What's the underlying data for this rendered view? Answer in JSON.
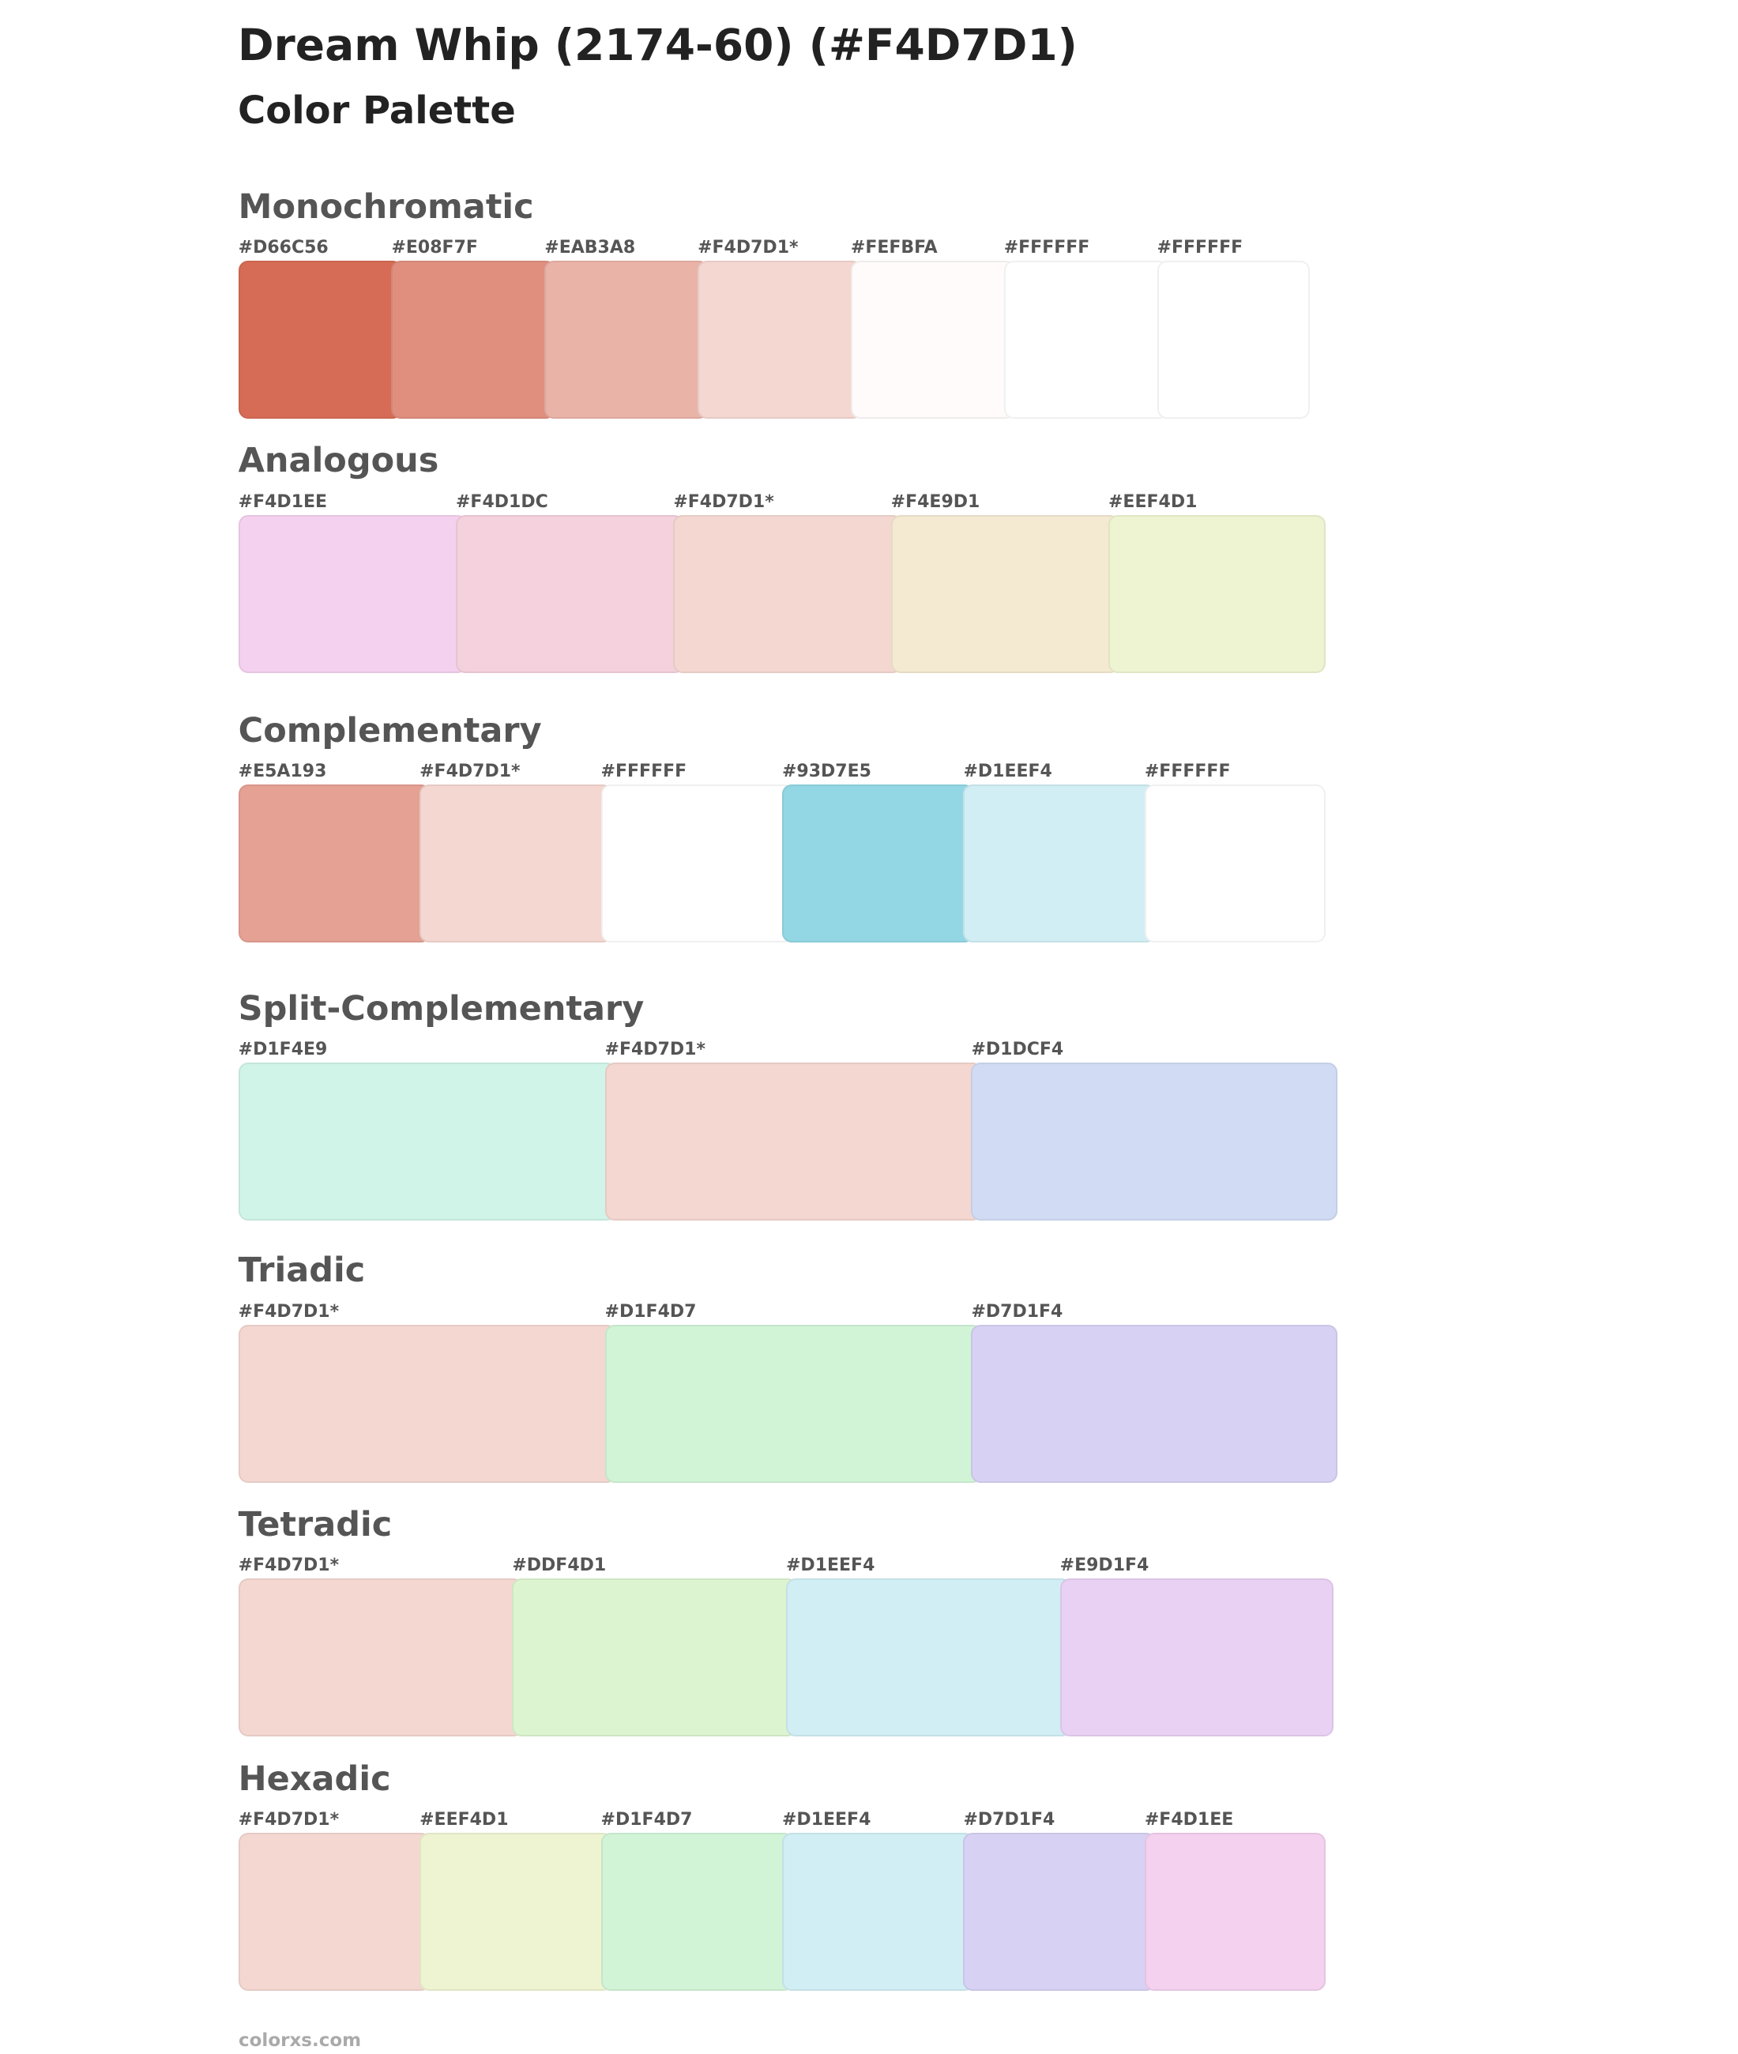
{
  "header": {
    "title": "Dream Whip (2174-60) (#F4D7D1)",
    "subtitle": "Color Palette"
  },
  "sections": [
    {
      "name": "Monochromatic",
      "swatches": [
        {
          "label": "#D66C56",
          "color": "#D66C56"
        },
        {
          "label": "#E08F7F",
          "color": "#E08F7F"
        },
        {
          "label": "#EAB3A8",
          "color": "#EAB3A8"
        },
        {
          "label": "#F4D7D1*",
          "color": "#F4D7D1"
        },
        {
          "label": "#FEFBFA",
          "color": "#FEFBFA"
        },
        {
          "label": "#FFFFFF",
          "color": "#FFFFFF"
        },
        {
          "label": "#FFFFFF",
          "color": "#FFFFFF"
        }
      ]
    },
    {
      "name": "Analogous",
      "swatches": [
        {
          "label": "#F4D1EE",
          "color": "#F4D1EE"
        },
        {
          "label": "#F4D1DC",
          "color": "#F4D1DC"
        },
        {
          "label": "#F4D7D1*",
          "color": "#F4D7D1"
        },
        {
          "label": "#F4E9D1",
          "color": "#F4E9D1"
        },
        {
          "label": "#EEF4D1",
          "color": "#EEF4D1"
        }
      ]
    },
    {
      "name": "Complementary",
      "swatches": [
        {
          "label": "#E5A193",
          "color": "#E5A193"
        },
        {
          "label": "#F4D7D1*",
          "color": "#F4D7D1"
        },
        {
          "label": "#FFFFFF",
          "color": "#FFFFFF"
        },
        {
          "label": "#93D7E5",
          "color": "#93D7E5"
        },
        {
          "label": "#D1EEF4",
          "color": "#D1EEF4"
        },
        {
          "label": "#FFFFFF",
          "color": "#FFFFFF"
        }
      ]
    },
    {
      "name": "Split-Complementary",
      "swatches": [
        {
          "label": "#D1F4E9",
          "color": "#D1F4E9"
        },
        {
          "label": "#F4D7D1*",
          "color": "#F4D7D1"
        },
        {
          "label": "#D1DCF4",
          "color": "#D1DCF4"
        }
      ]
    },
    {
      "name": "Triadic",
      "swatches": [
        {
          "label": "#F4D7D1*",
          "color": "#F4D7D1"
        },
        {
          "label": "#D1F4D7",
          "color": "#D1F4D7"
        },
        {
          "label": "#D7D1F4",
          "color": "#D7D1F4"
        }
      ]
    },
    {
      "name": "Tetradic",
      "swatches": [
        {
          "label": "#F4D7D1*",
          "color": "#F4D7D1"
        },
        {
          "label": "#DDF4D1",
          "color": "#DDF4D1"
        },
        {
          "label": "#D1EEF4",
          "color": "#D1EEF4"
        },
        {
          "label": "#E9D1F4",
          "color": "#E9D1F4"
        }
      ]
    },
    {
      "name": "Hexadic",
      "swatches": [
        {
          "label": "#F4D7D1*",
          "color": "#F4D7D1"
        },
        {
          "label": "#EEF4D1",
          "color": "#EEF4D1"
        },
        {
          "label": "#D1F4D7",
          "color": "#D1F4D7"
        },
        {
          "label": "#D1EEF4",
          "color": "#D1EEF4"
        },
        {
          "label": "#D7D1F4",
          "color": "#D7D1F4"
        },
        {
          "label": "#F4D1EE",
          "color": "#F4D1EE"
        }
      ]
    }
  ],
  "footer": "colorxs.com"
}
